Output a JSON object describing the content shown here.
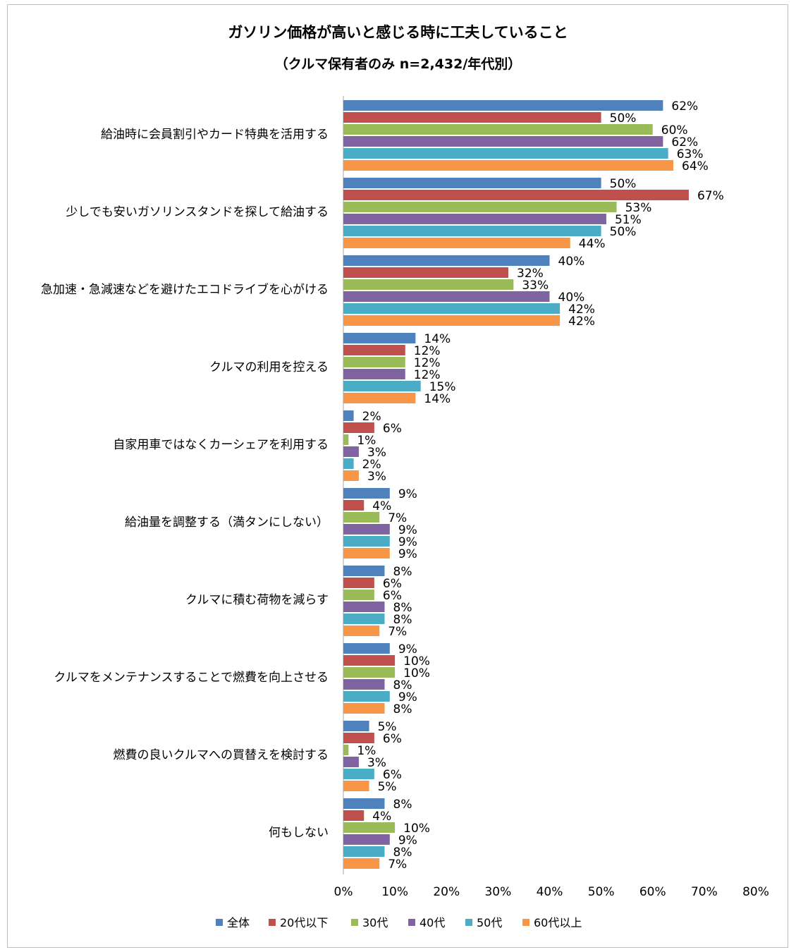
{
  "chart_data": {
    "type": "bar",
    "orientation": "horizontal",
    "title": "ガソリン価格が高いと感じる時に工夫していること",
    "subtitle": "（クルマ保有者のみ n=2,432/年代別）",
    "categories": [
      "給油時に会員割引やカード特典を活用する",
      "少しでも安いガソリンスタンドを探して給油する",
      "急加速・急減速などを避けたエコドライブを心がける",
      "クルマの利用を控える",
      "自家用車ではなくカーシェアを利用する",
      "給油量を調整する（満タンにしない）",
      "クルマに積む荷物を減らす",
      "クルマをメンテナンスすることで燃費を向上させる",
      "燃費の良いクルマへの買替えを検討する",
      "何もしない"
    ],
    "series": [
      {
        "name": "全体",
        "color": "#4f81bd",
        "values": [
          62,
          50,
          40,
          14,
          2,
          9,
          8,
          9,
          5,
          8
        ]
      },
      {
        "name": "20代以下",
        "color": "#c0504d",
        "values": [
          50,
          67,
          32,
          12,
          6,
          4,
          6,
          10,
          6,
          4
        ]
      },
      {
        "name": "30代",
        "color": "#9bbb59",
        "values": [
          60,
          53,
          33,
          12,
          1,
          7,
          6,
          10,
          1,
          10
        ]
      },
      {
        "name": "40代",
        "color": "#8064a2",
        "values": [
          62,
          51,
          40,
          12,
          3,
          9,
          8,
          8,
          3,
          9
        ]
      },
      {
        "name": "50代",
        "color": "#4bacc6",
        "values": [
          63,
          50,
          42,
          15,
          2,
          9,
          8,
          9,
          6,
          8
        ]
      },
      {
        "name": "60代以上",
        "color": "#f79646",
        "values": [
          64,
          44,
          42,
          14,
          3,
          9,
          7,
          8,
          5,
          7
        ]
      }
    ],
    "value_suffix": "%",
    "xlim": [
      0,
      80
    ],
    "xticks": [
      "0%",
      "10%",
      "20%",
      "30%",
      "40%",
      "50%",
      "60%",
      "70%",
      "80%"
    ],
    "legend_position": "bottom",
    "grid": false
  }
}
